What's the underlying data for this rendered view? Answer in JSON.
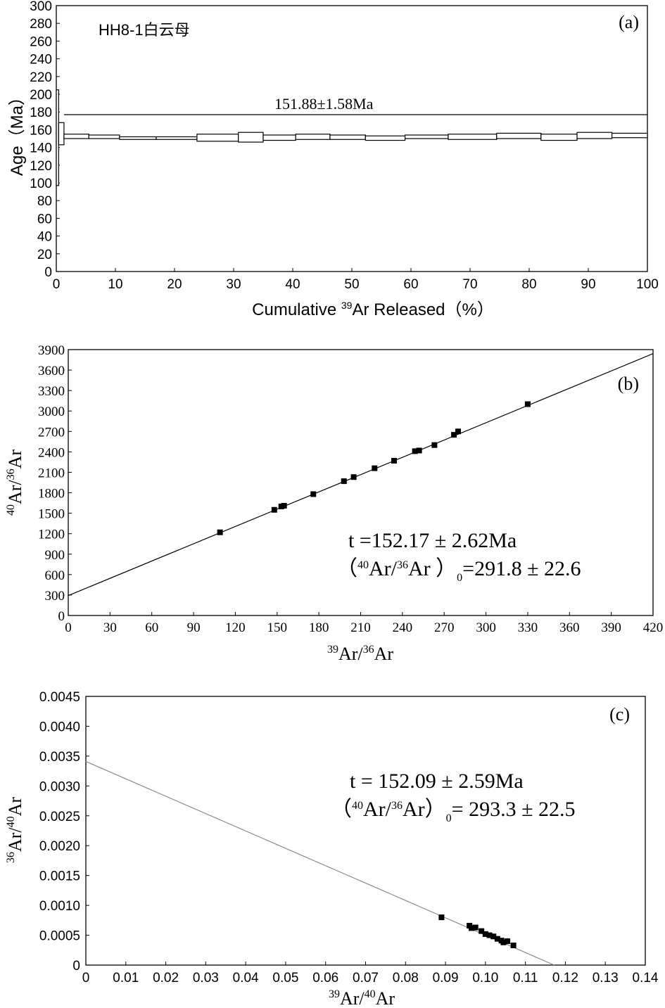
{
  "chart_data": [
    {
      "type": "bar",
      "panel_label": "(a)",
      "sample_label": "HH8-1白云母",
      "plateau_label": "151.88±1.58Ma",
      "plateau_age": 177,
      "ylabel": "Age（Ma）",
      "xlabel_prefix": "Cumulative ",
      "xlabel_sup": "39",
      "xlabel_suffix": "Ar Released（%）",
      "xlim": [
        0,
        100
      ],
      "ylim": [
        0,
        300
      ],
      "xticks": [
        0,
        10,
        20,
        30,
        40,
        50,
        60,
        70,
        80,
        90,
        100
      ],
      "yticks": [
        0,
        20,
        40,
        60,
        80,
        100,
        120,
        140,
        160,
        180,
        200,
        220,
        240,
        260,
        280,
        300
      ],
      "steps": [
        {
          "x0": 0.0,
          "x1": 0.4,
          "ymin": 97,
          "ymax": 205
        },
        {
          "x0": 0.4,
          "x1": 1.3,
          "ymin": 143,
          "ymax": 168
        },
        {
          "x0": 1.3,
          "x1": 5.5,
          "ymin": 150,
          "ymax": 155
        },
        {
          "x0": 5.5,
          "x1": 10.7,
          "ymin": 150,
          "ymax": 154
        },
        {
          "x0": 10.7,
          "x1": 16.9,
          "ymin": 149,
          "ymax": 152
        },
        {
          "x0": 16.9,
          "x1": 23.8,
          "ymin": 149,
          "ymax": 152
        },
        {
          "x0": 23.8,
          "x1": 30.8,
          "ymin": 147,
          "ymax": 155
        },
        {
          "x0": 30.8,
          "x1": 35.0,
          "ymin": 146,
          "ymax": 157
        },
        {
          "x0": 35.0,
          "x1": 40.5,
          "ymin": 148,
          "ymax": 154
        },
        {
          "x0": 40.5,
          "x1": 46.3,
          "ymin": 149,
          "ymax": 155
        },
        {
          "x0": 46.3,
          "x1": 52.3,
          "ymin": 149,
          "ymax": 154
        },
        {
          "x0": 52.3,
          "x1": 59.0,
          "ymin": 148,
          "ymax": 153
        },
        {
          "x0": 59.0,
          "x1": 66.3,
          "ymin": 150,
          "ymax": 154
        },
        {
          "x0": 66.3,
          "x1": 74.5,
          "ymin": 149,
          "ymax": 155
        },
        {
          "x0": 74.5,
          "x1": 82.0,
          "ymin": 150,
          "ymax": 156
        },
        {
          "x0": 82.0,
          "x1": 88.1,
          "ymin": 148,
          "ymax": 155
        },
        {
          "x0": 88.1,
          "x1": 94.0,
          "ymin": 150,
          "ymax": 157
        },
        {
          "x0": 94.0,
          "x1": 100.0,
          "ymin": 151,
          "ymax": 156
        }
      ]
    },
    {
      "type": "scatter",
      "panel_label": "(b)",
      "ylabel_sup1": "40",
      "ylabel_mid": "Ar/",
      "ylabel_sup2": "36",
      "ylabel_end": "Ar",
      "xlabel_sup1": "39",
      "xlabel_mid": "Ar/",
      "xlabel_sup2": "36",
      "xlabel_end": "Ar",
      "ann_line1": "t =152.17 ± 2.62Ma",
      "ann2_open": "（",
      "ann2_sup1": "40",
      "ann2_mid": "Ar/",
      "ann2_sup2": "36",
      "ann2_ar": "Ar ）",
      "ann2_sub": "0",
      "ann2_end": "=291.8 ± 22.6",
      "xlim": [
        0,
        420
      ],
      "ylim": [
        0,
        3900
      ],
      "xticks": [
        0,
        30,
        60,
        90,
        120,
        150,
        180,
        210,
        240,
        270,
        300,
        330,
        360,
        390,
        420
      ],
      "yticks": [
        0,
        300,
        600,
        900,
        1200,
        1500,
        1800,
        2100,
        2400,
        2700,
        3000,
        3300,
        3600,
        3900
      ],
      "fit_line": {
        "intercept": 291.8,
        "slope": 8.45
      },
      "points": [
        {
          "x": 109,
          "y": 1220
        },
        {
          "x": 148,
          "y": 1550
        },
        {
          "x": 153,
          "y": 1600
        },
        {
          "x": 155,
          "y": 1610
        },
        {
          "x": 176,
          "y": 1780
        },
        {
          "x": 198,
          "y": 1970
        },
        {
          "x": 205,
          "y": 2030
        },
        {
          "x": 220,
          "y": 2160
        },
        {
          "x": 234,
          "y": 2270
        },
        {
          "x": 249,
          "y": 2410
        },
        {
          "x": 252,
          "y": 2420
        },
        {
          "x": 263,
          "y": 2500
        },
        {
          "x": 277,
          "y": 2650
        },
        {
          "x": 280,
          "y": 2700
        },
        {
          "x": 330,
          "y": 3100
        }
      ]
    },
    {
      "type": "scatter",
      "panel_label": "(c)",
      "ylabel_sup1": "36",
      "ylabel_mid": "Ar/",
      "ylabel_sup2": "40",
      "ylabel_end": "Ar",
      "xlabel_sup1": "39",
      "xlabel_mid": "Ar/",
      "xlabel_sup2": "40",
      "xlabel_end": "Ar",
      "ann_line1": "t = 152.09 ± 2.59Ma",
      "ann2_open": "（",
      "ann2_sup1": "40",
      "ann2_mid": "Ar/",
      "ann2_sup2": "36",
      "ann2_ar": "Ar）",
      "ann2_sub": "0",
      "ann2_end": "= 293.3 ± 22.5",
      "xlim": [
        0,
        0.14
      ],
      "ylim": [
        0,
        0.0045
      ],
      "xticks": [
        0,
        0.01,
        0.02,
        0.03,
        0.04,
        0.05,
        0.06,
        0.07,
        0.08,
        0.09,
        0.1,
        0.11,
        0.12,
        0.13,
        0.14
      ],
      "xtick_labels": [
        "0",
        "0.01",
        "0.02",
        "0.03",
        "0.04",
        "0.05",
        "0.06",
        "0.07",
        "0.08",
        "0.09",
        "0.10",
        "0.11",
        "0.12",
        "0.13",
        "0.14"
      ],
      "yticks": [
        0,
        0.0005,
        0.001,
        0.0015,
        0.002,
        0.0025,
        0.003,
        0.0035,
        0.004,
        0.0045
      ],
      "ytick_labels": [
        "0",
        "0.0005",
        "0.0010",
        "0.0015",
        "0.0020",
        "0.0025",
        "0.0030",
        "0.0035",
        "0.0040",
        "0.0045"
      ],
      "fit_line": {
        "x0": 0,
        "y0": 0.00341,
        "x1": 0.1172,
        "y1": 0
      },
      "line_color": "#8a8a8a",
      "points": [
        {
          "x": 0.089,
          "y": 0.0008
        },
        {
          "x": 0.096,
          "y": 0.00066
        },
        {
          "x": 0.0965,
          "y": 0.00062
        },
        {
          "x": 0.0975,
          "y": 0.00063
        },
        {
          "x": 0.099,
          "y": 0.00057
        },
        {
          "x": 0.1,
          "y": 0.00052
        },
        {
          "x": 0.101,
          "y": 0.0005
        },
        {
          "x": 0.102,
          "y": 0.00048
        },
        {
          "x": 0.103,
          "y": 0.00044
        },
        {
          "x": 0.104,
          "y": 0.00041
        },
        {
          "x": 0.1045,
          "y": 0.00038
        },
        {
          "x": 0.1055,
          "y": 0.0004
        },
        {
          "x": 0.107,
          "y": 0.00033
        }
      ]
    }
  ]
}
